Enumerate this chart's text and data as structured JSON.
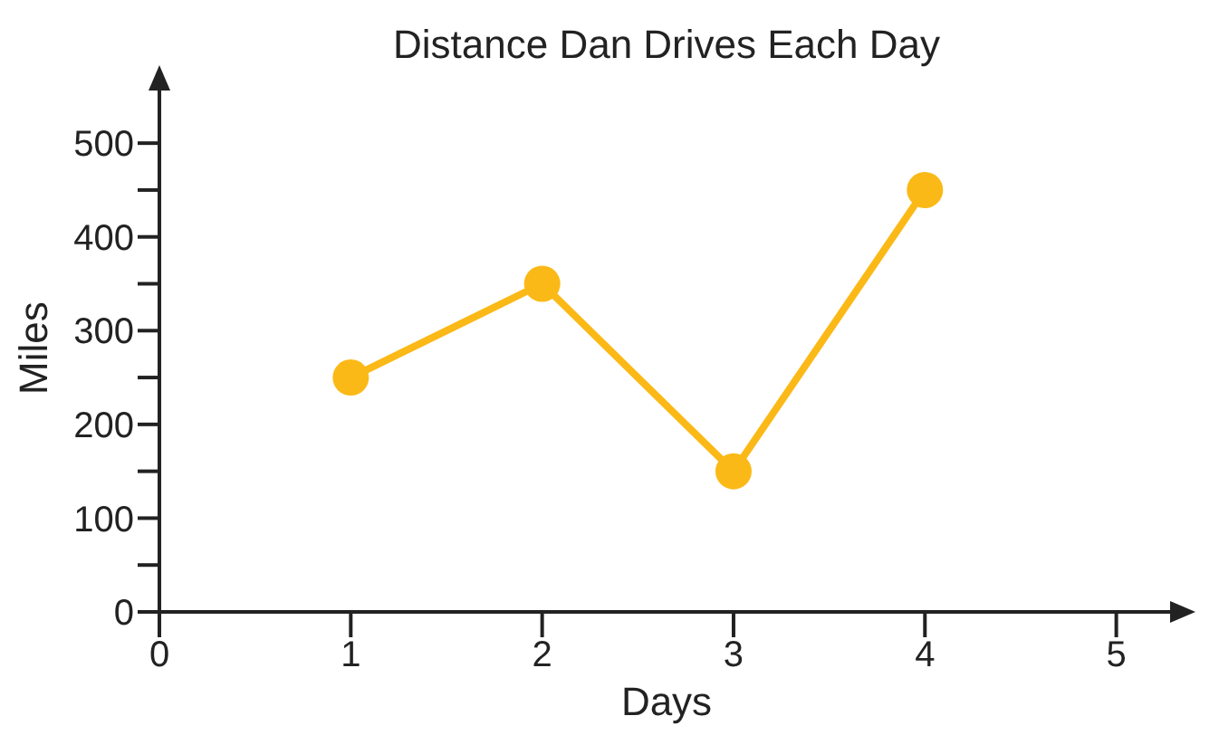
{
  "chart_data": {
    "type": "line",
    "title": "Distance Dan Drives Each Day",
    "xlabel": "Days",
    "ylabel": "Miles",
    "x": [
      1,
      2,
      3,
      4
    ],
    "series": [
      {
        "color": "#fbb917",
        "values": [
          250,
          350,
          150,
          450
        ]
      }
    ],
    "xlim": [
      0,
      5.3
    ],
    "xticks": [
      0,
      1,
      2,
      3,
      4,
      5
    ],
    "ylim": [
      0,
      560
    ],
    "yticks": [
      0,
      {
        "value": 50,
        "label": null
      },
      100,
      {
        "value": 150,
        "label": null
      },
      200,
      {
        "value": 250,
        "label": null
      },
      300,
      {
        "value": 350,
        "label": null
      },
      400,
      {
        "value": 450,
        "label": null
      },
      500
    ],
    "grid": false,
    "legend": false,
    "marker": "circle",
    "line_style": "solid"
  }
}
